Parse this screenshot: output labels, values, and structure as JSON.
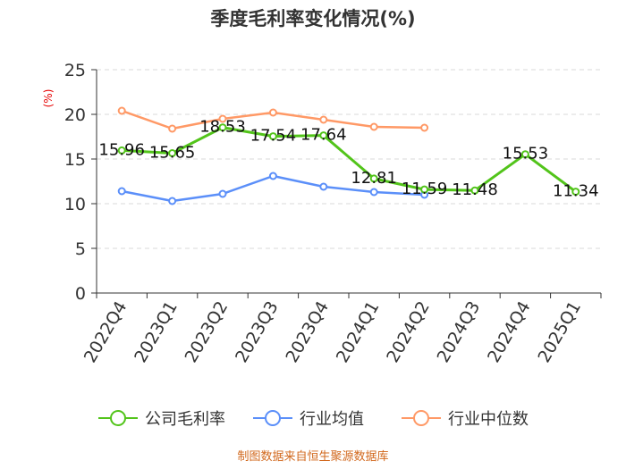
{
  "chart_data": {
    "type": "line",
    "title": "季度毛利率变化情况(%)",
    "unit_label": "(%)",
    "categories": [
      "2022Q4",
      "2023Q1",
      "2023Q2",
      "2023Q3",
      "2023Q4",
      "2024Q1",
      "2024Q2",
      "2024Q3",
      "2024Q4",
      "2025Q1"
    ],
    "ylim": [
      0,
      25
    ],
    "yticks": [
      0,
      5,
      10,
      15,
      20,
      25
    ],
    "grid": true,
    "legend_position": "bottom",
    "series": [
      {
        "name": "公司毛利率",
        "color": "#52c41a",
        "values": [
          15.96,
          15.65,
          18.53,
          17.54,
          17.64,
          12.81,
          11.59,
          11.48,
          15.53,
          11.34
        ],
        "labels": [
          "15.96",
          "15.65",
          "18.53",
          "17.54",
          "17.64",
          "12.81",
          "11.59",
          "11.48",
          "15.53",
          "11.34"
        ]
      },
      {
        "name": "行业均值",
        "color": "#5b8ff9",
        "values": [
          11.4,
          10.3,
          11.1,
          13.1,
          11.9,
          11.3,
          11.0,
          null,
          null,
          null
        ]
      },
      {
        "name": "行业中位数",
        "color": "#ff9966",
        "values": [
          20.4,
          18.4,
          19.5,
          20.2,
          19.4,
          18.6,
          18.5,
          null,
          null,
          null
        ]
      }
    ]
  },
  "source": "制图数据来自恒生聚源数据库"
}
